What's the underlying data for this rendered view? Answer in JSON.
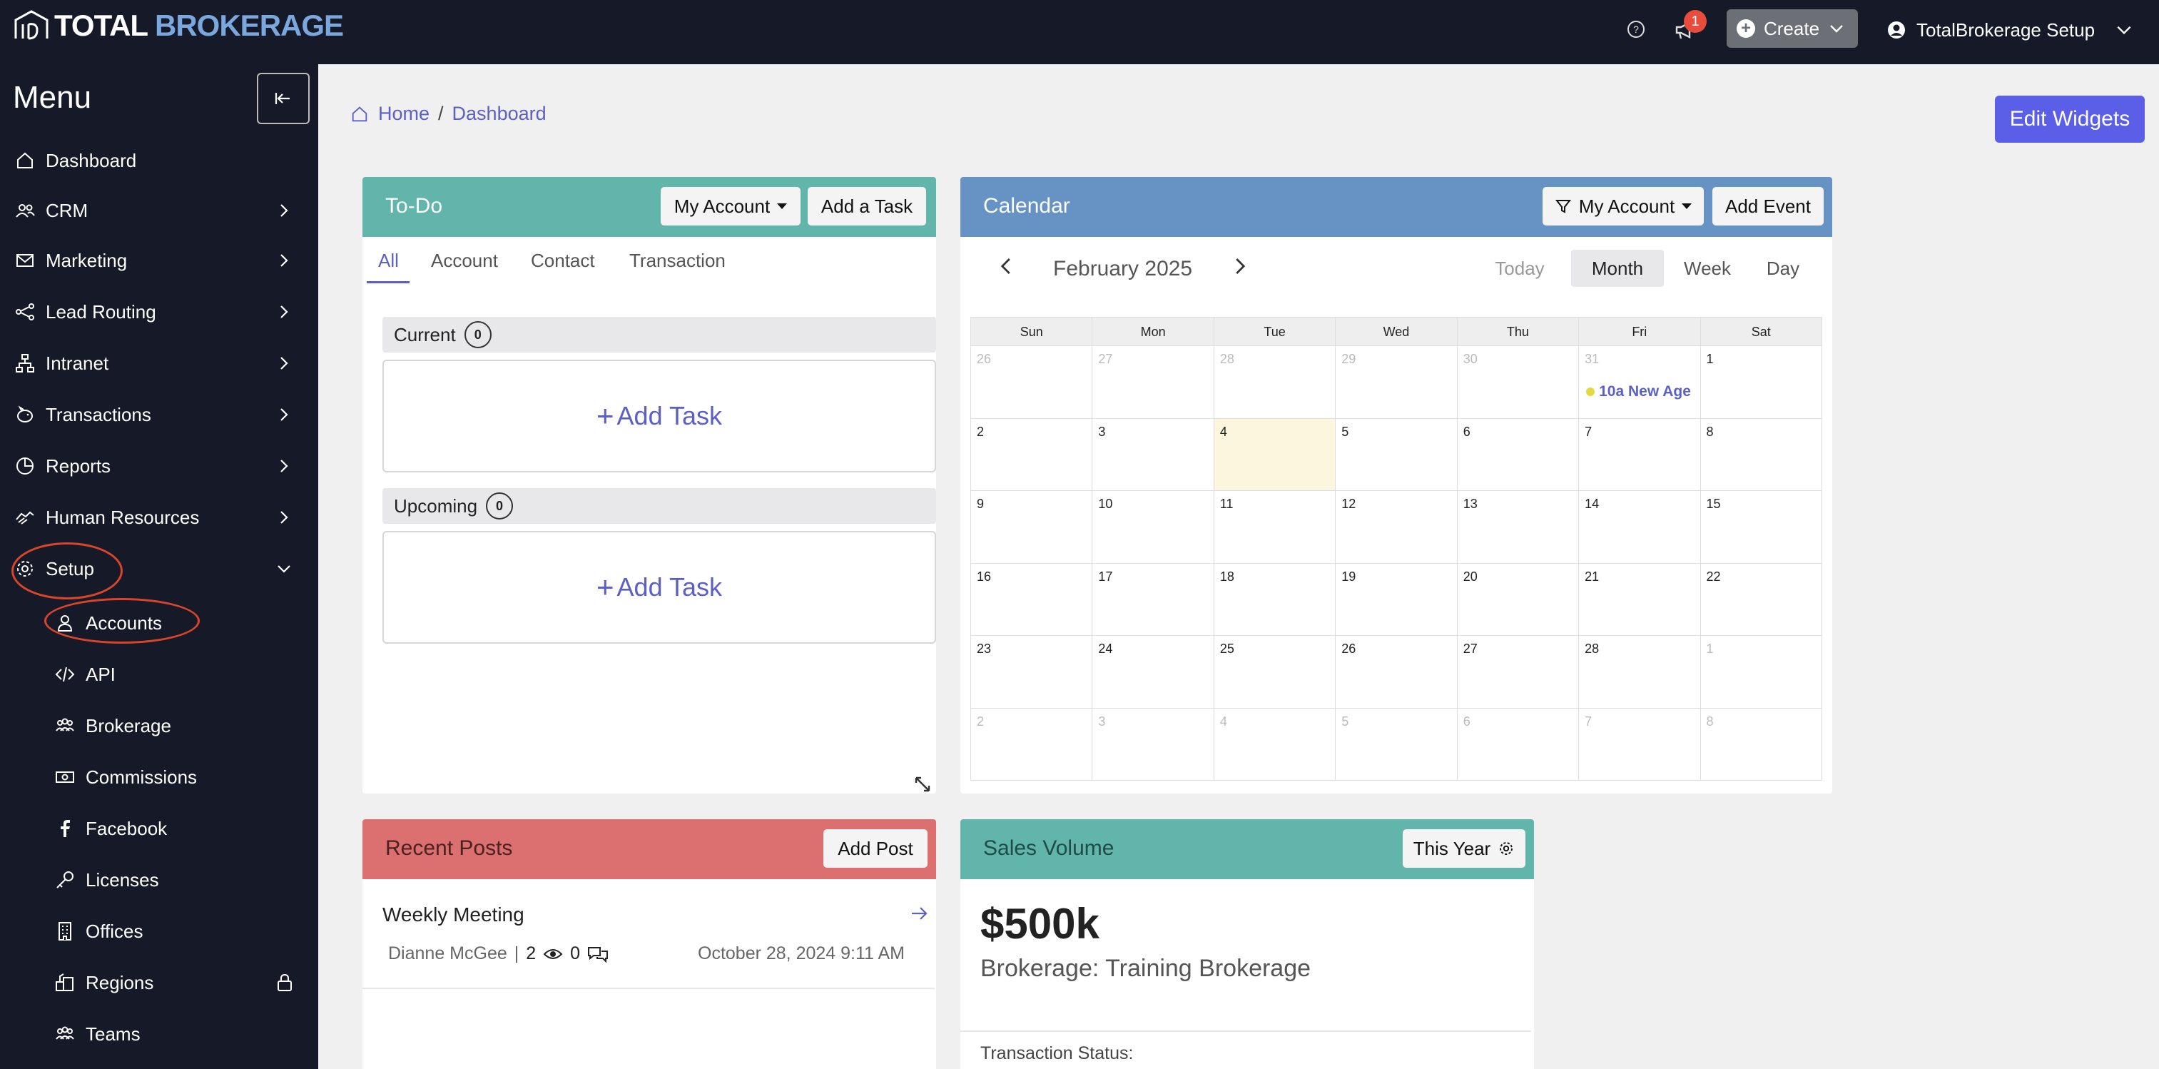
{
  "app": {
    "logo_prefix": "TOTAL",
    "logo_suffix": "BROKERAGE",
    "notification_count": "1",
    "create_label": "Create",
    "user_name": "TotalBrokerage Setup"
  },
  "sidebar": {
    "title": "Menu",
    "items": [
      {
        "label": "Dashboard",
        "icon": "home-icon"
      },
      {
        "label": "CRM",
        "icon": "people-icon"
      },
      {
        "label": "Marketing",
        "icon": "mail-icon"
      },
      {
        "label": "Lead Routing",
        "icon": "network-icon"
      },
      {
        "label": "Intranet",
        "icon": "sitemap-icon"
      },
      {
        "label": "Transactions",
        "icon": "piggy-bank-icon"
      },
      {
        "label": "Reports",
        "icon": "pie-chart-icon"
      },
      {
        "label": "Human Resources",
        "icon": "handshake-icon"
      },
      {
        "label": "Setup",
        "icon": "gear-icon"
      }
    ],
    "setup_sub_items": [
      {
        "label": "Accounts",
        "icon": "person-icon"
      },
      {
        "label": "API",
        "icon": "code-icon"
      },
      {
        "label": "Brokerage",
        "icon": "group-icon"
      },
      {
        "label": "Commissions",
        "icon": "cash-icon"
      },
      {
        "label": "Facebook",
        "icon": "facebook-icon"
      },
      {
        "label": "Licenses",
        "icon": "key-icon"
      },
      {
        "label": "Offices",
        "icon": "building-icon"
      },
      {
        "label": "Regions",
        "icon": "regions-icon"
      },
      {
        "label": "Teams",
        "icon": "team-icon"
      }
    ]
  },
  "breadcrumb": {
    "home": "Home",
    "current": "Dashboard",
    "separator": "/"
  },
  "edit_widgets_label": "Edit Widgets",
  "todo": {
    "title": "To-Do",
    "filter_label": "My Account",
    "add_task_button": "Add a Task",
    "tabs": [
      "All",
      "Account",
      "Contact",
      "Transaction"
    ],
    "current_label": "Current",
    "current_count": "0",
    "upcoming_label": "Upcoming",
    "upcoming_count": "0",
    "add_task_label": "Add Task",
    "header_color": "#62b5ab"
  },
  "calendar": {
    "title": "Calendar",
    "filter_label": "My Account",
    "add_event_button": "Add Event",
    "month_label": "February 2025",
    "views": [
      "Today",
      "Month",
      "Week",
      "Day"
    ],
    "active_view": "Month",
    "weekdays": [
      "Sun",
      "Mon",
      "Tue",
      "Wed",
      "Thu",
      "Fri",
      "Sat"
    ],
    "weeks": [
      [
        {
          "d": "26",
          "m": true
        },
        {
          "d": "27",
          "m": true
        },
        {
          "d": "28",
          "m": true
        },
        {
          "d": "29",
          "m": true
        },
        {
          "d": "30",
          "m": true
        },
        {
          "d": "31",
          "m": true
        },
        {
          "d": "1"
        }
      ],
      [
        {
          "d": "2"
        },
        {
          "d": "3"
        },
        {
          "d": "4",
          "today": true
        },
        {
          "d": "5"
        },
        {
          "d": "6"
        },
        {
          "d": "7"
        },
        {
          "d": "8"
        }
      ],
      [
        {
          "d": "9"
        },
        {
          "d": "10"
        },
        {
          "d": "11"
        },
        {
          "d": "12"
        },
        {
          "d": "13"
        },
        {
          "d": "14"
        },
        {
          "d": "15"
        }
      ],
      [
        {
          "d": "16"
        },
        {
          "d": "17"
        },
        {
          "d": "18"
        },
        {
          "d": "19"
        },
        {
          "d": "20"
        },
        {
          "d": "21"
        },
        {
          "d": "22"
        }
      ],
      [
        {
          "d": "23"
        },
        {
          "d": "24"
        },
        {
          "d": "25"
        },
        {
          "d": "26"
        },
        {
          "d": "27"
        },
        {
          "d": "28"
        },
        {
          "d": "1",
          "m": true
        }
      ],
      [
        {
          "d": "2",
          "m": true
        },
        {
          "d": "3",
          "m": true
        },
        {
          "d": "4",
          "m": true
        },
        {
          "d": "5",
          "m": true
        },
        {
          "d": "6",
          "m": true
        },
        {
          "d": "7",
          "m": true
        },
        {
          "d": "8",
          "m": true
        }
      ]
    ],
    "event": {
      "text": "10a New Age",
      "week": 0,
      "day": 5
    },
    "header_color": "#6792c4"
  },
  "recent_posts": {
    "title": "Recent Posts",
    "add_button": "Add Post",
    "post": {
      "title": "Weekly Meeting",
      "author": "Dianne McGee",
      "separator": "|",
      "views": "2",
      "comments": "0",
      "date": "October 28, 2024 9:11 AM"
    },
    "header_color": "#dc6f6f"
  },
  "sales_volume": {
    "title": "Sales Volume",
    "period_label": "This Year",
    "value": "$500k",
    "subtitle": "Brokerage: Training Brokerage",
    "status_label": "Transaction Status:",
    "header_color": "#62b5ab"
  }
}
